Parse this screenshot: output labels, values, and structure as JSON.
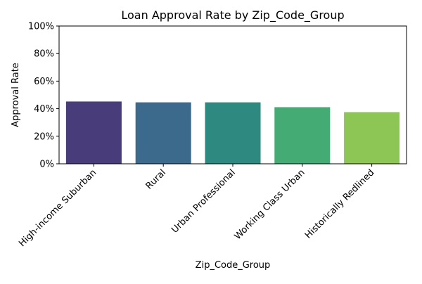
{
  "chart_data": {
    "type": "bar",
    "title": "Loan Approval Rate by Zip_Code_Group",
    "xlabel": "Zip_Code_Group",
    "ylabel": "Approval Rate",
    "categories": [
      "High-income Suburban",
      "Rural",
      "Urban Professional",
      "Working Class Urban",
      "Historically Redlined"
    ],
    "values": [
      0.452,
      0.446,
      0.446,
      0.411,
      0.375
    ],
    "colors": [
      "#483d7a",
      "#3b6a8c",
      "#2e8a80",
      "#45ab74",
      "#8ec655"
    ],
    "ylim": [
      0,
      1
    ],
    "yticks": [
      0,
      0.2,
      0.4,
      0.6,
      0.8,
      1.0
    ],
    "ytick_labels": [
      "0%",
      "20%",
      "40%",
      "60%",
      "80%",
      "100%"
    ],
    "grid": false,
    "legend": "none"
  }
}
